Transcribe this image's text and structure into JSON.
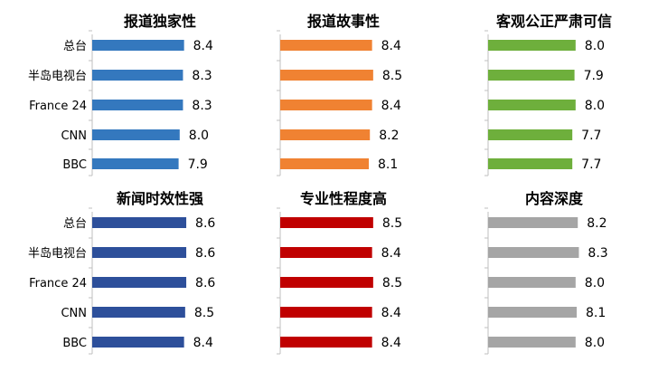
{
  "chart_data": [
    {
      "type": "bar",
      "orientation": "horizontal",
      "title": "报道独家性",
      "categories": [
        "总台",
        "半岛电视台",
        "France 24",
        "CNN",
        "BBC"
      ],
      "values": [
        8.4,
        8.3,
        8.3,
        8.0,
        7.9
      ],
      "value_labels": [
        "8.4",
        "8.3",
        "8.3",
        "8.0",
        "7.9"
      ],
      "color": "#3478BE"
    },
    {
      "type": "bar",
      "orientation": "horizontal",
      "title": "报道故事性",
      "categories": [
        "总台",
        "半岛电视台",
        "France 24",
        "CNN",
        "BBC"
      ],
      "values": [
        8.4,
        8.5,
        8.4,
        8.2,
        8.1
      ],
      "value_labels": [
        "8.4",
        "8.5",
        "8.4",
        "8.2",
        "8.1"
      ],
      "color": "#F08232"
    },
    {
      "type": "bar",
      "orientation": "horizontal",
      "title": "客观公正严肃可信",
      "categories": [
        "总台",
        "半岛电视台",
        "France 24",
        "CNN",
        "BBC"
      ],
      "values": [
        8.0,
        7.9,
        8.0,
        7.7,
        7.7
      ],
      "value_labels": [
        "8.0",
        "7.9",
        "8.0",
        "7.7",
        "7.7"
      ],
      "color": "#6EAF3C"
    },
    {
      "type": "bar",
      "orientation": "horizontal",
      "title": "新闻时效性强",
      "categories": [
        "总台",
        "半岛电视台",
        "France 24",
        "CNN",
        "BBC"
      ],
      "values": [
        8.6,
        8.6,
        8.6,
        8.5,
        8.4
      ],
      "value_labels": [
        "8.6",
        "8.6",
        "8.6",
        "8.5",
        "8.4"
      ],
      "color": "#2D4F9A"
    },
    {
      "type": "bar",
      "orientation": "horizontal",
      "title": "专业性程度高",
      "categories": [
        "总台",
        "半岛电视台",
        "France 24",
        "CNN",
        "BBC"
      ],
      "values": [
        8.5,
        8.4,
        8.5,
        8.4,
        8.4
      ],
      "value_labels": [
        "8.5",
        "8.4",
        "8.5",
        "8.4",
        "8.4"
      ],
      "color": "#C00000"
    },
    {
      "type": "bar",
      "orientation": "horizontal",
      "title": "内容深度",
      "categories": [
        "总台",
        "半岛电视台",
        "France 24",
        "CNN",
        "BBC"
      ],
      "values": [
        8.2,
        8.3,
        8.0,
        8.1,
        8.0
      ],
      "value_labels": [
        "8.2",
        "8.3",
        "8.0",
        "8.1",
        "8.0"
      ],
      "color": "#A5A5A5"
    }
  ]
}
